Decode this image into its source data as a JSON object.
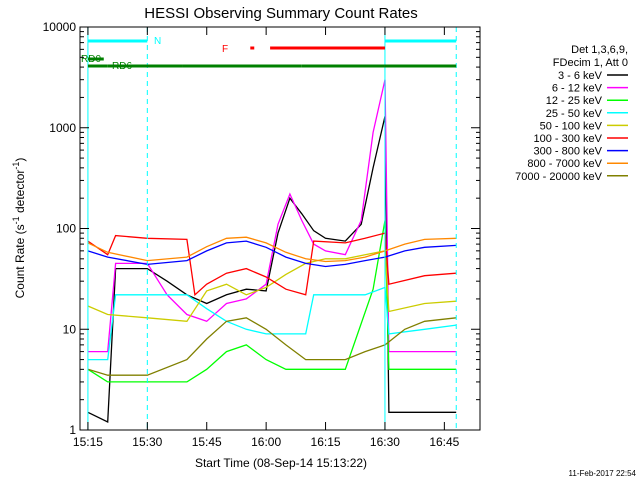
{
  "chart_data": {
    "type": "line",
    "title": "HESSI Observing Summary Count Rates",
    "xlabel": "Start Time (08-Sep-14 15:13:22)",
    "ylabel": "Count Rate (s",
    "ylabel_sup": "-1",
    "ylabel_tail": " detector",
    "ylabel_close": ")",
    "y_scale": "log",
    "ylim": [
      1,
      10000
    ],
    "xlim": [
      "15:13",
      "16:54"
    ],
    "x_ticks": [
      "15:15",
      "15:30",
      "15:45",
      "16:00",
      "16:15",
      "16:30",
      "16:45"
    ],
    "y_ticks": [
      "1",
      "10",
      "100",
      "1000",
      "10000"
    ],
    "date_stamp": "11-Feb-2017 22:54",
    "legend_header": [
      "Det 1,3,6,9,",
      "FDecim 1, Att 0"
    ],
    "series": [
      {
        "name": "3 - 6 keV",
        "color": "#000000",
        "points": [
          [
            "15:15",
            1.5
          ],
          [
            "15:20",
            1.2
          ],
          [
            "15:22",
            40
          ],
          [
            "15:30",
            40
          ],
          [
            "15:35",
            30
          ],
          [
            "15:40",
            22
          ],
          [
            "15:45",
            18
          ],
          [
            "15:50",
            22
          ],
          [
            "15:55",
            25
          ],
          [
            "16:00",
            24
          ],
          [
            "16:03",
            90
          ],
          [
            "16:06",
            200
          ],
          [
            "16:09",
            140
          ],
          [
            "16:12",
            95
          ],
          [
            "16:15",
            80
          ],
          [
            "16:20",
            75
          ],
          [
            "16:24",
            110
          ],
          [
            "16:27",
            400
          ],
          [
            "16:30",
            1300
          ],
          [
            "16:31",
            1.5
          ],
          [
            "16:48",
            1.5
          ]
        ]
      },
      {
        "name": "6 - 12 keV",
        "color": "#ff00ff",
        "points": [
          [
            "15:15",
            6
          ],
          [
            "15:20",
            6
          ],
          [
            "15:22",
            45
          ],
          [
            "15:30",
            45
          ],
          [
            "15:35",
            22
          ],
          [
            "15:40",
            14
          ],
          [
            "15:45",
            12
          ],
          [
            "15:50",
            18
          ],
          [
            "15:55",
            20
          ],
          [
            "16:00",
            28
          ],
          [
            "16:03",
            110
          ],
          [
            "16:06",
            220
          ],
          [
            "16:09",
            120
          ],
          [
            "16:12",
            70
          ],
          [
            "16:15",
            60
          ],
          [
            "16:20",
            55
          ],
          [
            "16:24",
            120
          ],
          [
            "16:27",
            900
          ],
          [
            "16:30",
            3000
          ],
          [
            "16:31",
            6
          ],
          [
            "16:48",
            6
          ]
        ]
      },
      {
        "name": "12 - 25 keV",
        "color": "#00ff00",
        "points": [
          [
            "15:15",
            4
          ],
          [
            "15:20",
            3
          ],
          [
            "15:30",
            3
          ],
          [
            "15:40",
            3
          ],
          [
            "15:45",
            4
          ],
          [
            "15:50",
            6
          ],
          [
            "15:55",
            7
          ],
          [
            "16:00",
            5
          ],
          [
            "16:05",
            4
          ],
          [
            "16:10",
            4
          ],
          [
            "16:20",
            4
          ],
          [
            "16:27",
            25
          ],
          [
            "16:30",
            120
          ],
          [
            "16:31",
            4
          ],
          [
            "16:48",
            4
          ]
        ]
      },
      {
        "name": "25 - 50 keV",
        "color": "#00ffff",
        "points": [
          [
            "15:15",
            5
          ],
          [
            "15:20",
            5
          ],
          [
            "15:22",
            22
          ],
          [
            "15:30",
            22
          ],
          [
            "15:40",
            22
          ],
          [
            "15:45",
            16
          ],
          [
            "15:50",
            12
          ],
          [
            "15:55",
            10
          ],
          [
            "16:00",
            9
          ],
          [
            "16:05",
            9
          ],
          [
            "16:10",
            9
          ],
          [
            "16:12",
            22
          ],
          [
            "16:20",
            22
          ],
          [
            "16:25",
            22
          ],
          [
            "16:30",
            26
          ],
          [
            "16:31",
            9
          ],
          [
            "16:40",
            10
          ],
          [
            "16:48",
            11
          ]
        ]
      },
      {
        "name": "50 - 100 keV",
        "color": "#cccc00",
        "points": [
          [
            "15:15",
            17
          ],
          [
            "15:20",
            14
          ],
          [
            "15:30",
            13
          ],
          [
            "15:40",
            12
          ],
          [
            "15:45",
            24
          ],
          [
            "15:50",
            28
          ],
          [
            "15:55",
            22
          ],
          [
            "16:00",
            26
          ],
          [
            "16:05",
            35
          ],
          [
            "16:10",
            45
          ],
          [
            "16:15",
            50
          ],
          [
            "16:20",
            50
          ],
          [
            "16:25",
            55
          ],
          [
            "16:30",
            60
          ],
          [
            "16:31",
            15
          ],
          [
            "16:40",
            18
          ],
          [
            "16:48",
            19
          ]
        ]
      },
      {
        "name": "100 - 300 keV",
        "color": "#ff0000",
        "points": [
          [
            "15:15",
            75
          ],
          [
            "15:20",
            55
          ],
          [
            "15:22",
            85
          ],
          [
            "15:30",
            80
          ],
          [
            "15:40",
            78
          ],
          [
            "15:42",
            22
          ],
          [
            "15:45",
            28
          ],
          [
            "15:50",
            36
          ],
          [
            "15:55",
            40
          ],
          [
            "16:00",
            33
          ],
          [
            "16:05",
            25
          ],
          [
            "16:10",
            22
          ],
          [
            "16:12",
            75
          ],
          [
            "16:20",
            72
          ],
          [
            "16:25",
            80
          ],
          [
            "16:30",
            90
          ],
          [
            "16:31",
            28
          ],
          [
            "16:40",
            34
          ],
          [
            "16:48",
            36
          ]
        ]
      },
      {
        "name": "300 - 800 keV",
        "color": "#0000ff",
        "points": [
          [
            "15:15",
            60
          ],
          [
            "15:20",
            52
          ],
          [
            "15:30",
            44
          ],
          [
            "15:40",
            48
          ],
          [
            "15:45",
            60
          ],
          [
            "15:50",
            72
          ],
          [
            "15:55",
            75
          ],
          [
            "16:00",
            65
          ],
          [
            "16:05",
            52
          ],
          [
            "16:10",
            45
          ],
          [
            "16:15",
            42
          ],
          [
            "16:20",
            44
          ],
          [
            "16:25",
            48
          ],
          [
            "16:30",
            52
          ],
          [
            "16:35",
            60
          ],
          [
            "16:40",
            65
          ],
          [
            "16:48",
            68
          ]
        ]
      },
      {
        "name": "800 - 7000 keV",
        "color": "#ff8800",
        "points": [
          [
            "15:15",
            72
          ],
          [
            "15:20",
            58
          ],
          [
            "15:30",
            48
          ],
          [
            "15:40",
            52
          ],
          [
            "15:45",
            66
          ],
          [
            "15:50",
            80
          ],
          [
            "15:55",
            82
          ],
          [
            "16:00",
            72
          ],
          [
            "16:05",
            58
          ],
          [
            "16:10",
            50
          ],
          [
            "16:15",
            47
          ],
          [
            "16:20",
            48
          ],
          [
            "16:25",
            52
          ],
          [
            "16:30",
            60
          ],
          [
            "16:35",
            70
          ],
          [
            "16:40",
            78
          ],
          [
            "16:48",
            80
          ]
        ]
      },
      {
        "name": "7000 - 20000 keV",
        "color": "#808000",
        "points": [
          [
            "15:15",
            4
          ],
          [
            "15:20",
            3.5
          ],
          [
            "15:30",
            3.5
          ],
          [
            "15:40",
            5
          ],
          [
            "15:45",
            8
          ],
          [
            "15:50",
            12
          ],
          [
            "15:55",
            13
          ],
          [
            "16:00",
            10
          ],
          [
            "16:05",
            7
          ],
          [
            "16:10",
            5
          ],
          [
            "16:20",
            5
          ],
          [
            "16:25",
            6
          ],
          [
            "16:30",
            7
          ],
          [
            "16:35",
            10
          ],
          [
            "16:40",
            12
          ],
          [
            "16:48",
            13
          ]
        ]
      }
    ],
    "flag_bars": [
      {
        "label": "N",
        "color": "#00ffff",
        "segments": [
          [
            "15:15",
            "15:30"
          ],
          [
            "16:30",
            "16:48"
          ]
        ]
      },
      {
        "label": "F",
        "color": "#ff0000",
        "segments": [
          [
            "15:56",
            "15:57"
          ],
          [
            "16:01",
            "16:30"
          ]
        ]
      },
      {
        "label": "RD0",
        "color": "#008000",
        "segments": [
          [
            "15:15",
            "15:19"
          ]
        ]
      },
      {
        "label": "RD6",
        "color": "#008000",
        "segments": [
          [
            "15:15",
            "15:20"
          ],
          [
            "15:20",
            "15:39"
          ],
          [
            "15:39",
            "16:09"
          ],
          [
            "16:09",
            "16:30"
          ],
          [
            "16:30",
            "16:48"
          ]
        ]
      }
    ],
    "vertical_lines": [
      {
        "color": "#00ffff",
        "style": "dashed",
        "x": [
          "15:30",
          "16:48"
        ]
      },
      {
        "color": "#00ffff",
        "style": "solid",
        "x": [
          "15:15",
          "16:30"
        ]
      }
    ],
    "grid": false,
    "legend_position": "right"
  }
}
